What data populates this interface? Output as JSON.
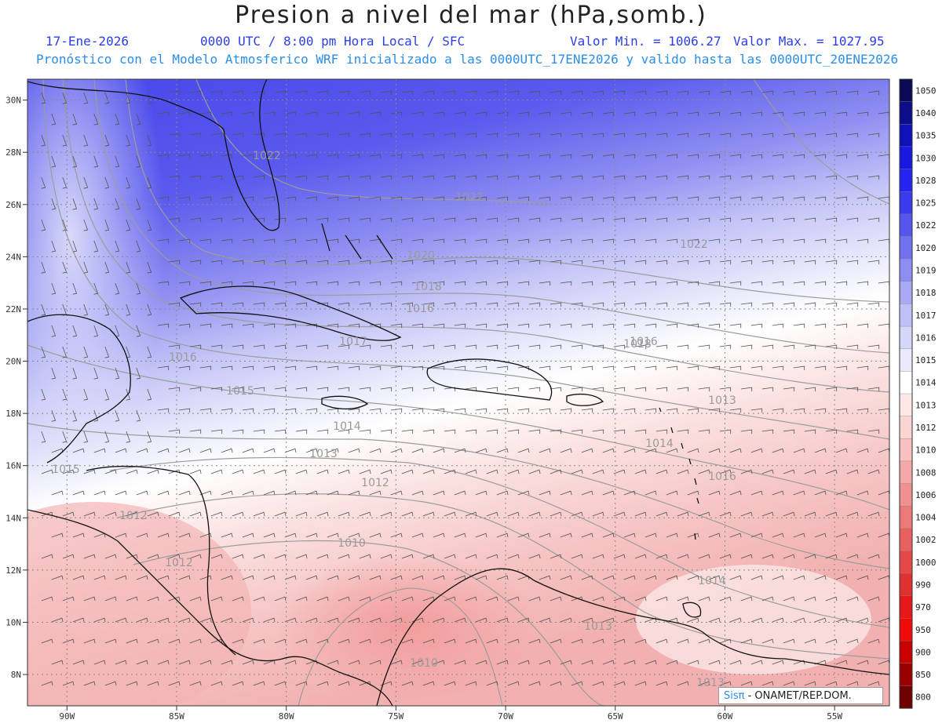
{
  "header": {
    "title": "Presion a nivel del mar (hPa,somb.)",
    "date": "17-Ene-2026",
    "time": "0000 UTC / 8:00 pm Hora Local / SFC",
    "min_label": "Valor Min. = 1006.27",
    "max_label": "Valor Max. = 1027.95",
    "subtitle": "Pronóstico con el Modelo Atmosferico WRF inicializado a las 0000UTC_17ENE2026 y valido hasta las  0000UTC_20ENE2026"
  },
  "axes": {
    "lat_labels": [
      "30N",
      "28N",
      "26N",
      "24N",
      "22N",
      "20N",
      "18N",
      "16N",
      "14N",
      "12N",
      "10N",
      "8N"
    ],
    "lat_values": [
      30,
      28,
      26,
      24,
      22,
      20,
      18,
      16,
      14,
      12,
      10,
      8
    ],
    "lon_labels": [
      "90W",
      "85W",
      "80W",
      "75W",
      "70W",
      "65W",
      "60W",
      "55W"
    ],
    "lon_values": [
      -90,
      -85,
      -80,
      -75,
      -70,
      -65,
      -60,
      -55
    ],
    "lon_range": [
      -91.8,
      -52.5
    ],
    "lat_range": [
      6.8,
      30.8
    ]
  },
  "colorbar": {
    "labels": [
      "1050",
      "1040",
      "1035",
      "1030",
      "1028",
      "1025",
      "1022",
      "1020",
      "1019",
      "1018",
      "1017",
      "1016",
      "1015",
      "1014",
      "1013",
      "1012",
      "1010",
      "1008",
      "1006",
      "1004",
      "1002",
      "1000",
      "990",
      "970",
      "950",
      "900",
      "850",
      "800"
    ],
    "colors": [
      "#0a0a55",
      "#0d0d8a",
      "#1010b8",
      "#1818e0",
      "#2424f0",
      "#3a3aec",
      "#5656ee",
      "#7272f0",
      "#8e8ef2",
      "#a8a8f5",
      "#c0c0f7",
      "#d6d6f9",
      "#eaeafc",
      "#ffffff",
      "#fde8e8",
      "#fbd4d4",
      "#f8c0c0",
      "#f4a8a8",
      "#f09090",
      "#ec7878",
      "#e86060",
      "#e44848",
      "#e03030",
      "#e41818",
      "#f00a0a",
      "#c80000",
      "#9a0000",
      "#6e0000"
    ]
  },
  "isobar_labels": [
    "1022",
    "1022",
    "1022",
    "1020",
    "1018",
    "1016",
    "1016",
    "1015",
    "1014",
    "1013",
    "1012",
    "1010",
    "1012",
    "1014",
    "1015",
    "1013",
    "1010",
    "1013",
    "1016",
    "1018",
    "1014",
    "1013",
    "1012",
    "1017",
    "1016"
  ],
  "credit": {
    "logo": "Sisπ",
    "text": " - ONAMET/REP.DOM."
  },
  "palette": {
    "high": "#3a3aec",
    "neutral": "#ffffff",
    "low": "#f4b0b0",
    "land_outline": "#111111",
    "isobar": "#9c9c9c",
    "grid": "#8a8a8a"
  }
}
